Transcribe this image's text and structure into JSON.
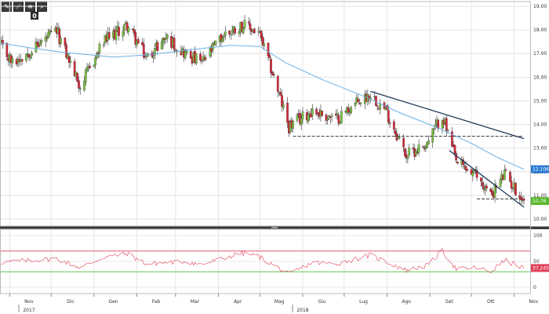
{
  "toolbar": {
    "buttons": [
      {
        "icon": "pencil-icon"
      },
      {
        "icon": "zigzag-line-icon"
      },
      {
        "icon": "fibonacci-icon"
      },
      {
        "icon": "search-icon"
      }
    ],
    "badge": "0"
  },
  "chart_data": [
    {
      "type": "candlestick",
      "title": "",
      "x_axis": {
        "month_labels": [
          "Nov",
          "Dic",
          "Gen",
          "Feb",
          "Mar",
          "Apr",
          "Mag",
          "Giu",
          "Lug",
          "Ago",
          "Set",
          "Ott",
          "Nov"
        ],
        "year_labels": [
          "2017",
          "2018"
        ],
        "range": [
          "2017-10-25",
          "2018-11-08"
        ]
      },
      "y_axis": {
        "ticks": [
          "19.00",
          "18.00",
          "17.00",
          "16.00",
          "15.00",
          "14.00",
          "13.00",
          "12.00",
          "11.00",
          "10.00"
        ],
        "range": [
          9.7,
          19.2
        ],
        "side": "right",
        "grid": true
      },
      "anchors": [
        [
          "2017-10-25",
          17.35
        ],
        [
          "2017-11-03",
          16.6
        ],
        [
          "2017-11-15",
          17.1
        ],
        [
          "2017-12-05",
          17.95
        ],
        [
          "2017-12-22",
          15.6
        ],
        [
          "2018-01-08",
          17.5
        ],
        [
          "2018-01-25",
          18.2
        ],
        [
          "2018-02-08",
          16.8
        ],
        [
          "2018-02-22",
          17.7
        ],
        [
          "2018-03-08",
          17.0
        ],
        [
          "2018-03-20",
          16.6
        ],
        [
          "2018-04-05",
          17.8
        ],
        [
          "2018-04-18",
          18.2
        ],
        [
          "2018-04-30",
          17.9
        ],
        [
          "2018-05-10",
          16.2
        ],
        [
          "2018-05-22",
          13.9
        ],
        [
          "2018-06-08",
          14.6
        ],
        [
          "2018-06-25",
          14.2
        ],
        [
          "2018-07-05",
          14.7
        ],
        [
          "2018-07-20",
          15.3
        ],
        [
          "2018-07-31",
          14.6
        ],
        [
          "2018-08-15",
          12.7
        ],
        [
          "2018-08-30",
          13.2
        ],
        [
          "2018-09-10",
          14.4
        ],
        [
          "2018-09-20",
          12.4
        ],
        [
          "2018-10-05",
          11.8
        ],
        [
          "2018-10-15",
          11.0
        ],
        [
          "2018-10-25",
          11.9
        ],
        [
          "2018-11-08",
          10.76
        ]
      ],
      "moving_average": {
        "color": "#6ab0e6",
        "points": [
          [
            "2017-10-25",
            17.45
          ],
          [
            "2017-11-15",
            17.25
          ],
          [
            "2017-12-10",
            17.05
          ],
          [
            "2018-01-15",
            16.85
          ],
          [
            "2018-02-10",
            16.95
          ],
          [
            "2018-03-10",
            17.15
          ],
          [
            "2018-04-10",
            17.35
          ],
          [
            "2018-05-01",
            17.3
          ],
          [
            "2018-05-20",
            16.6
          ],
          [
            "2018-06-15",
            15.9
          ],
          [
            "2018-07-15",
            15.2
          ],
          [
            "2018-08-10",
            14.5
          ],
          [
            "2018-09-05",
            13.9
          ],
          [
            "2018-10-01",
            13.2
          ],
          [
            "2018-10-20",
            12.6
          ],
          [
            "2018-11-08",
            12.1
          ]
        ]
      },
      "last_value_tags": [
        {
          "label": "12.1066",
          "value": 12.1066,
          "color": "#2a7bd4"
        },
        {
          "label": "10.76",
          "value": 10.76,
          "color": "#5ab82e"
        }
      ],
      "annotations": {
        "trendlines": [
          {
            "from": [
              "2018-07-20",
              15.4
            ],
            "to": [
              "2018-11-08",
              13.4
            ],
            "style": "solid",
            "color": "#1f3b5a"
          },
          {
            "from": [
              "2018-09-15",
              12.9
            ],
            "to": [
              "2018-11-08",
              10.5
            ],
            "style": "solid",
            "color": "#1f3b5a"
          }
        ],
        "horizontal_lines": [
          {
            "value": 13.5,
            "from": "2018-05-25",
            "to": "2018-11-08",
            "style": "dashed",
            "color": "#333333"
          },
          {
            "value": 10.85,
            "from": "2018-10-05",
            "to": "2018-11-05",
            "style": "dashed",
            "color": "#333333"
          }
        ]
      },
      "candle_colors": {
        "up": "#7cc243",
        "down": "#d8283a",
        "wick": "#333333"
      }
    },
    {
      "type": "line",
      "title": "",
      "y_axis": {
        "ticks": [
          "100",
          "50",
          "0"
        ],
        "range": [
          0,
          100
        ],
        "side": "right"
      },
      "series_color": "#e0405a",
      "reference_lines": [
        {
          "value": 70,
          "color": "#e0405a"
        },
        {
          "value": 30,
          "color": "#4cbb3a"
        }
      ],
      "last_value_tag": {
        "label": "37.2457",
        "value": 37.2457,
        "color": "#e0405a"
      },
      "anchors": [
        [
          "2017-10-25",
          48
        ],
        [
          "2017-11-15",
          52
        ],
        [
          "2017-12-05",
          55
        ],
        [
          "2017-12-22",
          38
        ],
        [
          "2018-01-08",
          58
        ],
        [
          "2018-01-25",
          65
        ],
        [
          "2018-02-08",
          45
        ],
        [
          "2018-03-08",
          50
        ],
        [
          "2018-03-20",
          44
        ],
        [
          "2018-04-18",
          66
        ],
        [
          "2018-04-30",
          60
        ],
        [
          "2018-05-22",
          25
        ],
        [
          "2018-06-08",
          48
        ],
        [
          "2018-06-25",
          45
        ],
        [
          "2018-07-20",
          62
        ],
        [
          "2018-08-15",
          33
        ],
        [
          "2018-08-30",
          42
        ],
        [
          "2018-09-10",
          70
        ],
        [
          "2018-09-20",
          35
        ],
        [
          "2018-10-05",
          38
        ],
        [
          "2018-10-15",
          30
        ],
        [
          "2018-10-25",
          52
        ],
        [
          "2018-11-08",
          37.2
        ]
      ]
    }
  ]
}
